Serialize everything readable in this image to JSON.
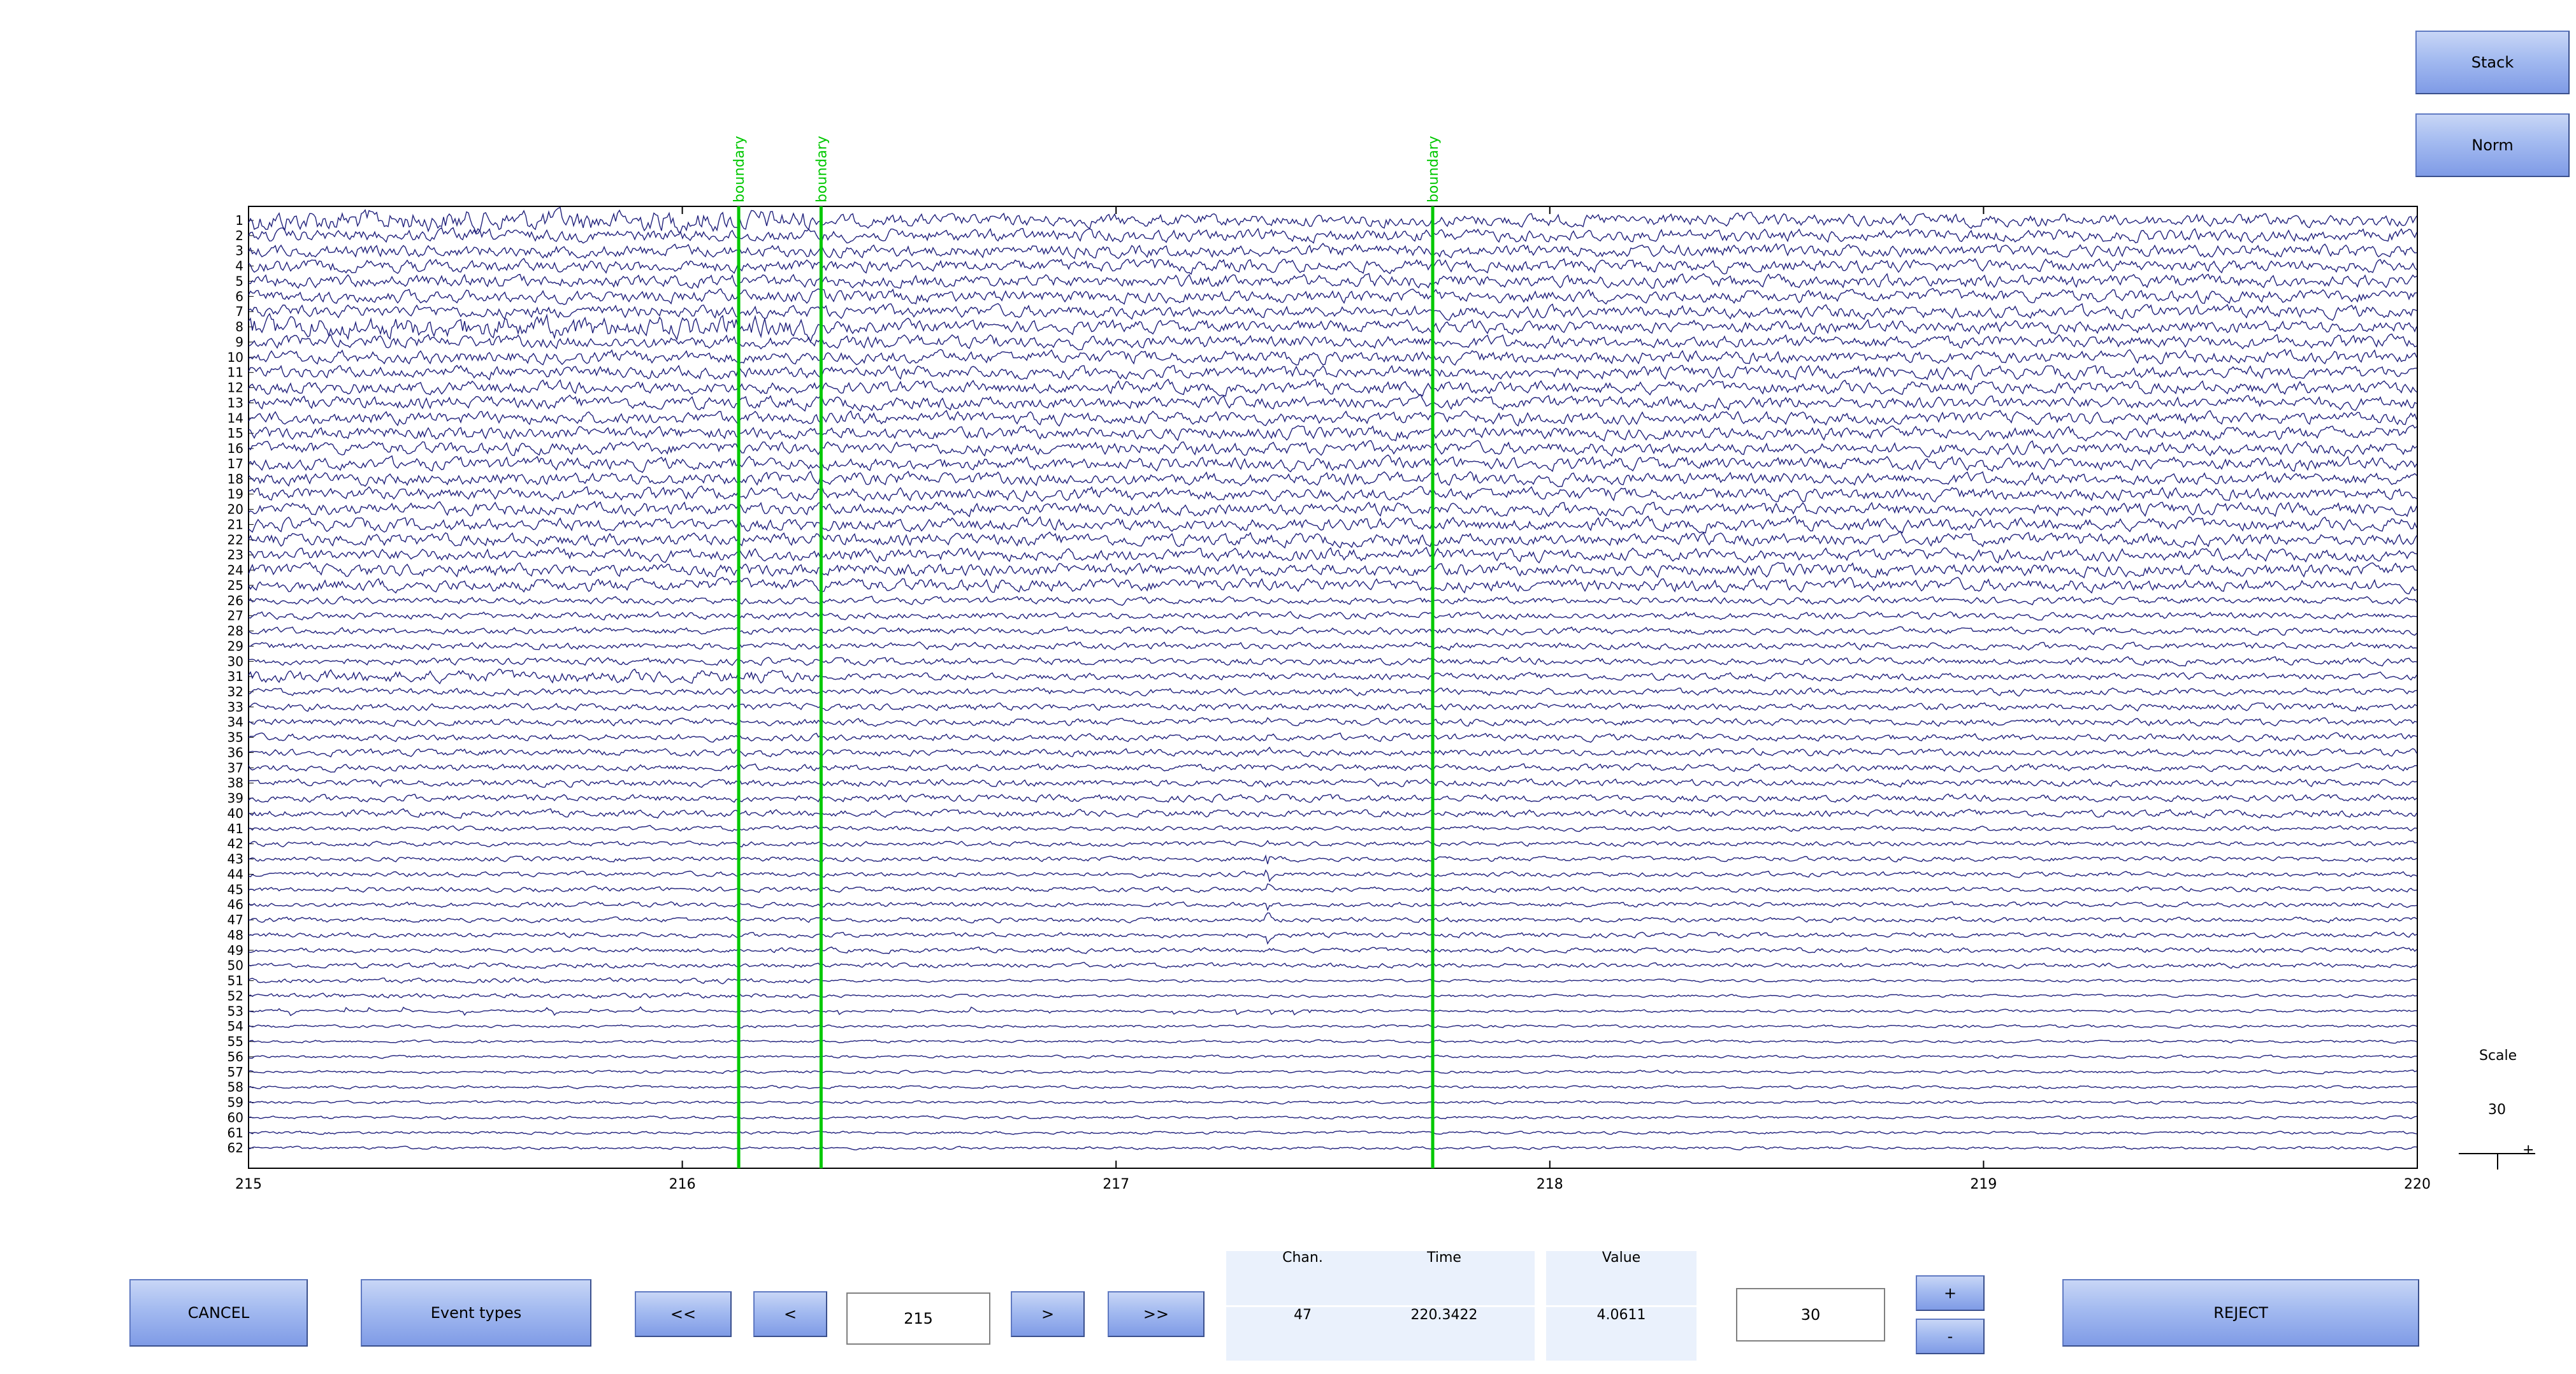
{
  "toolbar_right": {
    "stack_label": "Stack",
    "norm_label": "Norm"
  },
  "plot": {
    "x_ticks": [
      "215",
      "216",
      "217",
      "218",
      "219",
      "220"
    ],
    "x_range": [
      215,
      220
    ],
    "channels": 62,
    "events": [
      {
        "label": "boundary",
        "time": 216.13
      },
      {
        "label": "boundary",
        "time": 216.32
      },
      {
        "label": "boundary",
        "time": 217.73
      }
    ],
    "trace_color": "#1f1f7a",
    "event_color": "#00c800"
  },
  "scale_box": {
    "label": "Scale",
    "value": "30",
    "plus_glyph": "+"
  },
  "bottom": {
    "cancel_label": "CANCEL",
    "event_types_label": "Event types",
    "nav_first": "<<",
    "nav_prev": "<",
    "time_value": "215",
    "nav_next": ">",
    "nav_last": ">>",
    "info": {
      "chan_header": "Chan.",
      "chan_value": "47",
      "time_header": "Time",
      "time_value": "220.3422",
      "value_header": "Value",
      "value_value": "4.0611"
    },
    "scale_value": "30",
    "plus_label": "+",
    "minus_label": "-",
    "reject_label": "REJECT"
  }
}
